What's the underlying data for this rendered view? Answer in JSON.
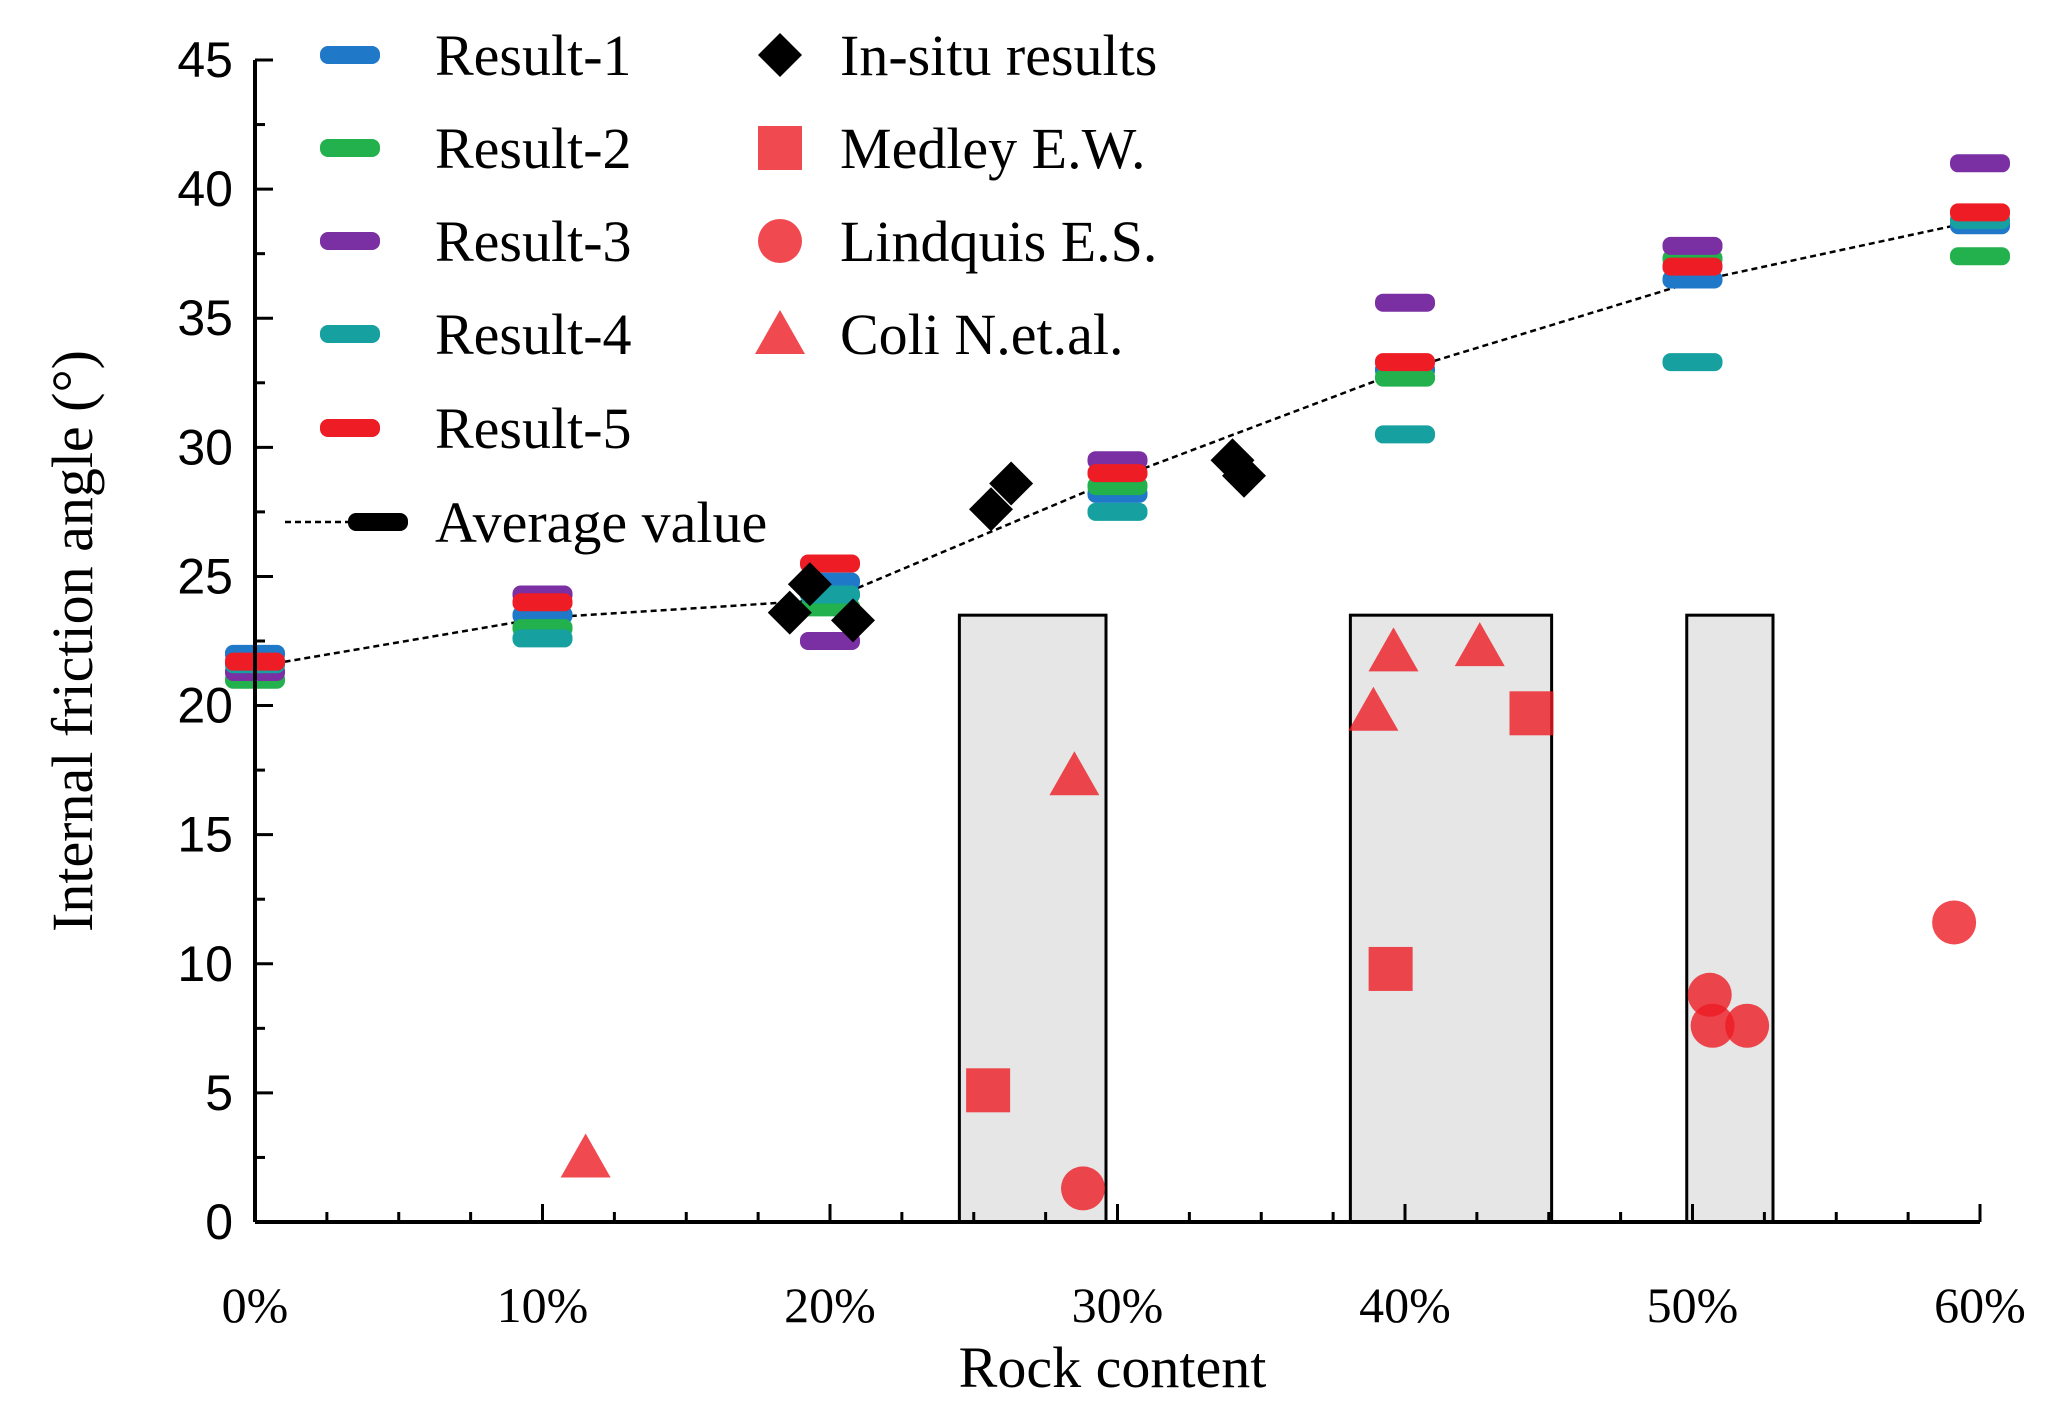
{
  "chart_data": {
    "type": "scatter",
    "title": "",
    "xlabel": "Rock content",
    "ylabel": "Internal friction angle (°)",
    "x_unit": "%",
    "xlim": [
      0,
      60
    ],
    "ylim": [
      0,
      45
    ],
    "x_ticks": [
      0,
      10,
      20,
      30,
      40,
      50,
      60
    ],
    "x_tick_labels": [
      "0%",
      "10%",
      "20%",
      "30%",
      "40%",
      "50%",
      "60%"
    ],
    "y_ticks": [
      0,
      5,
      10,
      15,
      20,
      25,
      30,
      35,
      40,
      45
    ],
    "y_tick_labels": [
      "0",
      "5",
      "10",
      "15",
      "20",
      "25",
      "30",
      "35",
      "40",
      "45"
    ],
    "shaded_ranges": [
      {
        "x_start": 24.5,
        "x_end": 29.6,
        "y_top": 23.5
      },
      {
        "x_start": 38.1,
        "x_end": 45.1,
        "y_top": 23.5
      },
      {
        "x_start": 49.8,
        "x_end": 52.8,
        "y_top": 23.5
      }
    ],
    "series": [
      {
        "name": "Result-1",
        "marker": "dash",
        "color": "#1f78c8",
        "x": [
          0,
          10,
          20,
          30,
          40,
          50,
          60
        ],
        "y": [
          22.0,
          23.5,
          24.8,
          28.2,
          33.0,
          36.5,
          38.6
        ]
      },
      {
        "name": "Result-2",
        "marker": "dash",
        "color": "#22b14c",
        "x": [
          0,
          10,
          20,
          30,
          40,
          50,
          60
        ],
        "y": [
          21.0,
          23.0,
          23.8,
          28.5,
          32.7,
          37.3,
          37.4
        ]
      },
      {
        "name": "Result-3",
        "marker": "dash",
        "color": "#7a2fa3",
        "x": [
          0,
          10,
          20,
          30,
          40,
          50,
          60
        ],
        "y": [
          21.3,
          24.3,
          22.5,
          29.5,
          35.6,
          37.8,
          41.0
        ]
      },
      {
        "name": "Result-4",
        "marker": "dash",
        "color": "#16a0a0",
        "x": [
          0,
          10,
          20,
          30,
          40,
          50,
          60
        ],
        "y": [
          21.6,
          22.6,
          24.3,
          27.5,
          30.5,
          33.3,
          38.8
        ]
      },
      {
        "name": "Result-5",
        "marker": "dash",
        "color": "#ee1c24",
        "x": [
          0,
          10,
          20,
          30,
          40,
          50,
          60
        ],
        "y": [
          21.7,
          24.0,
          25.5,
          29.0,
          33.3,
          37.0,
          39.1
        ]
      },
      {
        "name": "Average value",
        "marker": "line",
        "color": "#000000",
        "x": [
          0,
          10,
          20,
          30,
          40,
          50,
          60
        ],
        "y": [
          21.5,
          23.4,
          24.1,
          28.8,
          33.0,
          36.4,
          38.8
        ]
      },
      {
        "name": "In-situ results",
        "marker": "diamond",
        "color": "#000000",
        "x": [
          18.6,
          19.3,
          20.8,
          25.6,
          26.3,
          34.0,
          34.4
        ],
        "y": [
          23.6,
          24.7,
          23.3,
          27.6,
          28.6,
          29.5,
          28.9
        ]
      },
      {
        "name": "Medley E.W.",
        "marker": "square",
        "color": "#ee1c24",
        "x": [
          25.5,
          39.5,
          44.4
        ],
        "y": [
          5.1,
          9.8,
          19.7
        ]
      },
      {
        "name": "Lindquis E.S.",
        "marker": "circle",
        "color": "#ee1c24",
        "x": [
          28.8,
          50.6,
          50.7,
          51.9,
          59.1
        ],
        "y": [
          1.3,
          8.8,
          7.6,
          7.6,
          11.6
        ]
      },
      {
        "name": "Coli N.et.al.",
        "marker": "triangle",
        "color": "#ee1c24",
        "x": [
          11.5,
          28.5,
          38.9,
          39.6,
          42.6
        ],
        "y": [
          2.5,
          17.3,
          19.8,
          22.1,
          22.3
        ]
      }
    ],
    "legend": {
      "placement": "top-left",
      "entries": [
        {
          "label": "Result-1",
          "marker": "dash",
          "color": "#1f78c8"
        },
        {
          "label": "Result-2",
          "marker": "dash",
          "color": "#22b14c"
        },
        {
          "label": "Result-3",
          "marker": "dash",
          "color": "#7a2fa3"
        },
        {
          "label": "Result-4",
          "marker": "dash",
          "color": "#16a0a0"
        },
        {
          "label": "Result-5",
          "marker": "dash",
          "color": "#ee1c24"
        },
        {
          "label": "Average value",
          "marker": "line",
          "color": "#000000"
        },
        {
          "label": "In-situ results",
          "marker": "diamond",
          "color": "#000000"
        },
        {
          "label": "Medley E.W.",
          "marker": "square",
          "color": "#ee1c24"
        },
        {
          "label": "Lindquis E.S.",
          "marker": "circle",
          "color": "#ee1c24"
        },
        {
          "label": "Coli N.et.al.",
          "marker": "triangle",
          "color": "#ee1c24"
        }
      ]
    }
  }
}
